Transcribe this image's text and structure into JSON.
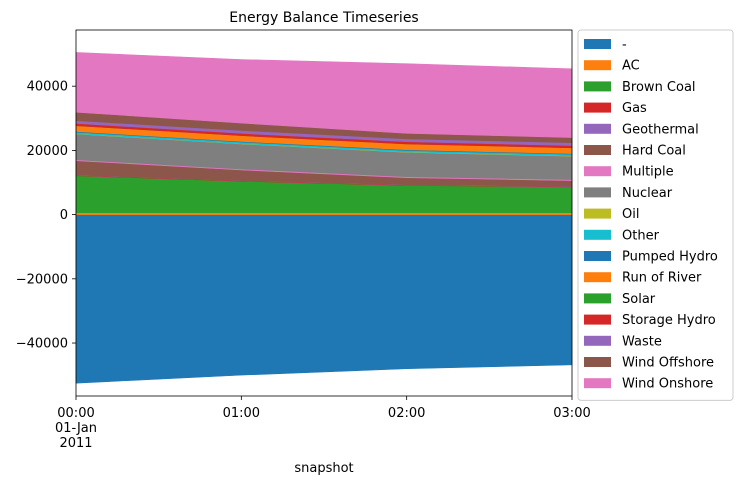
{
  "chart_data": {
    "type": "area",
    "title": "Energy Balance Timeseries",
    "xlabel": "snapshot",
    "ylabel": "",
    "x": [
      "00:00",
      "01:00",
      "02:00",
      "03:00"
    ],
    "x_tick_labels": [
      {
        "lines": [
          "00:00",
          "01-Jan",
          "2011"
        ]
      },
      {
        "lines": [
          "01:00"
        ]
      },
      {
        "lines": [
          "02:00"
        ]
      },
      {
        "lines": [
          "03:00"
        ]
      }
    ],
    "ylim": [
      -56500,
      57500
    ],
    "y_ticks": [
      -40000,
      -20000,
      0,
      20000,
      40000
    ],
    "y_tick_labels": [
      "−40000",
      "−20000",
      "0",
      "20000",
      "40000"
    ],
    "grid": false,
    "legend_position": "outside-right",
    "series": [
      {
        "name": "-",
        "color": "#1f77b4",
        "values": [
          -52500,
          -50000,
          -48000,
          -46800
        ]
      },
      {
        "name": "AC",
        "color": "#ff7f0e",
        "values": [
          600,
          600,
          600,
          600
        ]
      },
      {
        "name": "Brown Coal",
        "color": "#2ca02c",
        "values": [
          11500,
          9800,
          8500,
          8000
        ]
      },
      {
        "name": "Gas",
        "color": "#d62728",
        "values": [
          150,
          150,
          150,
          150
        ]
      },
      {
        "name": "Geothermal",
        "color": "#9467bd",
        "values": [
          50,
          50,
          50,
          50
        ]
      },
      {
        "name": "Hard Coal",
        "color": "#8c564b",
        "values": [
          4500,
          3300,
          2200,
          1800
        ]
      },
      {
        "name": "Multiple",
        "color": "#e377c2",
        "values": [
          300,
          300,
          300,
          300
        ]
      },
      {
        "name": "Nuclear",
        "color": "#7f7f7f",
        "values": [
          8000,
          7800,
          7600,
          7300
        ]
      },
      {
        "name": "Oil",
        "color": "#bcbd22",
        "values": [
          100,
          100,
          100,
          100
        ]
      },
      {
        "name": "Other",
        "color": "#17becf",
        "values": [
          500,
          500,
          500,
          500
        ]
      },
      {
        "name": "Pumped Hydro",
        "color": "#1f77b4",
        "values": [
          200,
          200,
          200,
          200
        ]
      },
      {
        "name": "Run of River",
        "color": "#ff7f0e",
        "values": [
          1800,
          1800,
          1800,
          1800
        ]
      },
      {
        "name": "Solar",
        "color": "#2ca02c",
        "values": [
          0,
          0,
          0,
          0
        ]
      },
      {
        "name": "Storage Hydro",
        "color": "#d62728",
        "values": [
          700,
          700,
          700,
          700
        ]
      },
      {
        "name": "Waste",
        "color": "#9467bd",
        "values": [
          900,
          900,
          900,
          900
        ]
      },
      {
        "name": "Wind Offshore",
        "color": "#8c564b",
        "values": [
          2600,
          2300,
          1700,
          1600
        ]
      },
      {
        "name": "Wind Onshore",
        "color": "#e377c2",
        "values": [
          18600,
          19800,
          21700,
          21400
        ]
      }
    ]
  }
}
